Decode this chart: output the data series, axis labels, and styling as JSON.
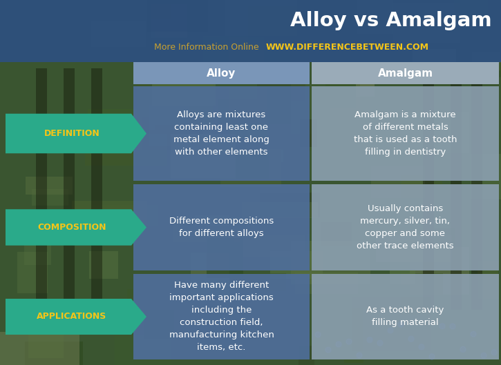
{
  "title": "Alloy vs Amalgam",
  "subtitle": "More Information Online",
  "website": "WWW.DIFFERENCEBETWEEN.COM",
  "col_headers": [
    "Alloy",
    "Amalgam"
  ],
  "row_labels": [
    "DEFINITION",
    "COMPOSITION",
    "APPLICATIONS"
  ],
  "alloy_cells": [
    "Alloys are mixtures\ncontaining least one\nmetal element along\nwith other elements",
    "Different compositions\nfor different alloys",
    "Have many different\nimportant applications\nincluding the\nconstruction field,\nmanufacturing kitchen\nitems, etc."
  ],
  "amalgam_cells": [
    "Amalgam is a mixture\nof different metals\nthat is used as a tooth\nfilling in dentistry",
    "Usually contains\nmercury, silver, tin,\ncopper and some\nother trace elements",
    "As a tooth cavity\nfilling material"
  ],
  "title_color": "#ffffff",
  "subtitle_color": "#c8a030",
  "website_color": "#f5c518",
  "header_bg_alloy": "#7a96b8",
  "header_bg_amalgam": "#9aabb8",
  "alloy_cell_bg": "#4f6e9a",
  "amalgam_cell_bg": "#8a9eae",
  "label_bg": "#2aaa8a",
  "label_text_color": "#f5c518",
  "cell_text_color": "#ffffff",
  "header_text_color": "#ffffff",
  "top_banner_color": "#2d5080",
  "bg_forest_colors": [
    "#3a5a2a",
    "#4a6a35",
    "#556b2f",
    "#2e4a1e",
    "#3d5c28"
  ],
  "gap_color": "#556848"
}
